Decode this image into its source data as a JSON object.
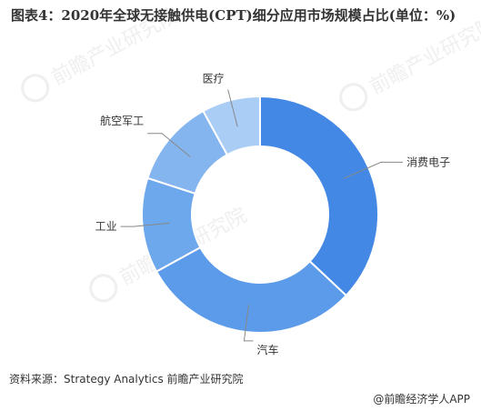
{
  "title": "图表4：2020年全球无接触供电(CPT)细分应用市场规模占比(单位：%)",
  "source_label": "资料来源：Strategy Analytics 前瞻产业研究院",
  "brand_label": "@前瞻经济学人APP",
  "watermark_text": "前瞻产业研究院",
  "colors": {
    "slice_1": "#4488e5",
    "slice_2": "#5b9be9",
    "slice_3": "#6ea8ec",
    "slice_4": "#85b5ee",
    "slice_5": "#a9cdf5",
    "leader_line": "#888888",
    "background": "#ffffff"
  },
  "chart_data": {
    "type": "pie",
    "variant": "donut",
    "categories": [
      "消费电子",
      "汽车",
      "工业",
      "航空军工",
      "医疗"
    ],
    "values": [
      37,
      30,
      13,
      12,
      8
    ],
    "legend": "none",
    "start_angle": "12 o'clock",
    "direction": "clockwise"
  }
}
